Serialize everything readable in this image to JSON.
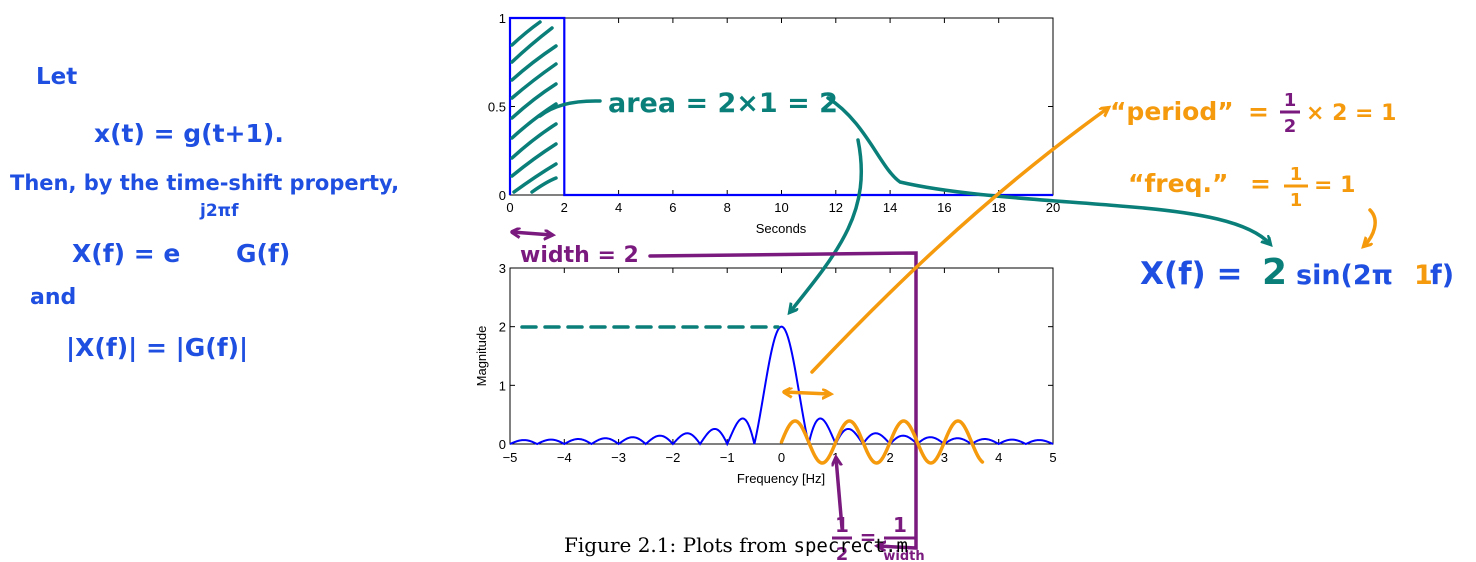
{
  "chart_data": [
    {
      "type": "line",
      "title": "",
      "xlabel": "Seconds",
      "ylabel": "",
      "xlim": [
        0,
        20
      ],
      "ylim": [
        0,
        1
      ],
      "xticks": [
        "0",
        "2",
        "4",
        "6",
        "8",
        "10",
        "12",
        "14",
        "16",
        "18",
        "20"
      ],
      "yticks": [
        "0",
        "0.5",
        "1"
      ],
      "series": [
        {
          "x": [
            0,
            0,
            2,
            2,
            20
          ],
          "y": [
            0,
            1,
            1,
            0,
            0
          ]
        }
      ],
      "grid": false
    },
    {
      "type": "line",
      "title": "",
      "xlabel": "Frequency [Hz]",
      "ylabel": "Magnitude",
      "xlim": [
        -5,
        5
      ],
      "ylim": [
        0,
        3
      ],
      "xticks": [
        "−5",
        "−4",
        "−3",
        "−2",
        "−1",
        "0",
        "1",
        "2",
        "3",
        "4",
        "5"
      ],
      "yticks": [
        "0",
        "1",
        "2",
        "3"
      ],
      "function": "|2 sinc(2f)|",
      "peak": 2,
      "grid": false
    }
  ],
  "annotations": {
    "left": {
      "let": "Let",
      "xt": "x(t) = g(t+1).",
      "then": "Then, by the time-shift property,",
      "xf": "X(f) = e",
      "xf_exp": "j2πf",
      "xf_g": "G(f)",
      "and": "and",
      "abs": "|X(f)| = |G(f)|"
    },
    "area": "area = 2×1 = 2",
    "width": "width = 2",
    "period_label": "“period”",
    "period_eq": "=",
    "period_num": "1",
    "period_den": "2",
    "period_rest": "× 2 = 1",
    "freq_label": "“freq.”",
    "freq_eq": "=",
    "freq_num": "1",
    "freq_den": "1",
    "freq_rest": "= 1",
    "formula_lhs": "X(f) =",
    "formula_two": "2",
    "formula_sin": "sin(2π",
    "formula_one": "1",
    "formula_f": "f)",
    "bottom_frac_left_num": "1",
    "bottom_frac_left_den": "2",
    "bottom_eq": "=",
    "bottom_frac_right_num": "1",
    "bottom_frac_right_den": "width"
  },
  "caption": {
    "prefix": "Figure 2.1: Plots from ",
    "filename": "specrect.m"
  },
  "colors": {
    "plot_blue": "#0000ff",
    "annotation_blue": "#1f4fe0",
    "teal": "#0a7f7a",
    "orange": "#f59a0c",
    "purple": "#7a1a7f"
  }
}
